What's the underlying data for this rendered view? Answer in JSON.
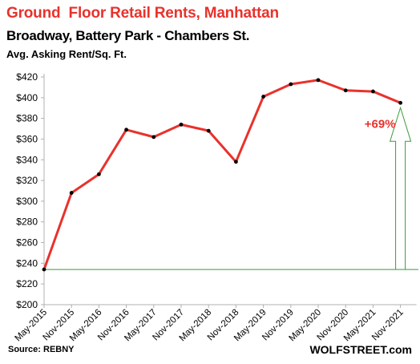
{
  "source": "Source: REBNY",
  "brand": "WOLFSTREET.com",
  "colors": {
    "line": "#e8322c",
    "annotation_line": "#3a9a3a",
    "axis": "#b0b0b0"
  },
  "chart_data": {
    "type": "line",
    "title": "Ground  Floor Retail Rents, Manhattan",
    "subtitle": "Broadway, Battery Park - Chambers St.",
    "ylabel": "Avg. Asking Rent/Sq. Ft.",
    "ylim": [
      200,
      420
    ],
    "yticks": [
      "$200",
      "$220",
      "$240",
      "$260",
      "$280",
      "$300",
      "$320",
      "$340",
      "$360",
      "$380",
      "$400",
      "$420"
    ],
    "categories": [
      "May-2015",
      "Nov-2015",
      "May-2016",
      "Nov-2016",
      "May-2017",
      "Nov-2017",
      "May-2018",
      "Nov-2018",
      "May-2019",
      "Nov-2019",
      "May-2020",
      "Nov-2020",
      "May-2021",
      "Nov-2021"
    ],
    "series": [
      {
        "values": [
          234,
          308,
          326,
          369,
          362,
          374,
          368,
          338,
          401,
          413,
          417,
          407,
          406,
          395
        ]
      }
    ],
    "grid": false,
    "annotation": {
      "text": "+69%",
      "baseline": 234,
      "target": 395
    }
  }
}
